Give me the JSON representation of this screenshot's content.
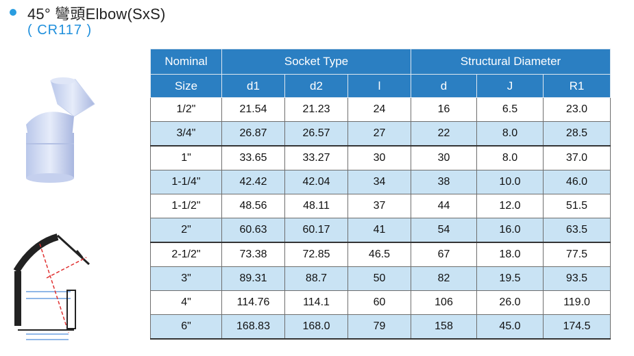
{
  "header": {
    "title": "45° 彎頭Elbow(SxS)",
    "code": "( CR117 )"
  },
  "colors": {
    "accent": "#1f8fdc",
    "header_bg": "#2b7fc2",
    "alt_row": "#c9e3f4"
  },
  "table": {
    "group_headers": [
      "Nominal",
      "Socket Type",
      "Structural Diameter"
    ],
    "sub_headers": [
      "Size",
      "d1",
      "d2",
      "l",
      "d",
      "J",
      "R1"
    ],
    "rows": [
      [
        "1/2\"",
        "21.54",
        "21.23",
        "24",
        "16",
        "6.5",
        "23.0"
      ],
      [
        "3/4\"",
        "26.87",
        "26.57",
        "27",
        "22",
        "8.0",
        "28.5"
      ],
      [
        "1\"",
        "33.65",
        "33.27",
        "30",
        "30",
        "8.0",
        "37.0"
      ],
      [
        "1-1/4\"",
        "42.42",
        "42.04",
        "34",
        "38",
        "10.0",
        "46.0"
      ],
      [
        "1-1/2\"",
        "48.56",
        "48.11",
        "37",
        "44",
        "12.0",
        "51.5"
      ],
      [
        "2\"",
        "60.63",
        "60.17",
        "41",
        "54",
        "16.0",
        "63.5"
      ],
      [
        "2-1/2\"",
        "73.38",
        "72.85",
        "46.5",
        "67",
        "18.0",
        "77.5"
      ],
      [
        "3\"",
        "89.31",
        "88.7",
        "50",
        "82",
        "19.5",
        "93.5"
      ],
      [
        "4\"",
        "114.76",
        "114.1",
        "60",
        "106",
        "26.0",
        "119.0"
      ],
      [
        "6\"",
        "168.83",
        "168.0",
        "79",
        "158",
        "45.0",
        "174.5"
      ]
    ]
  }
}
